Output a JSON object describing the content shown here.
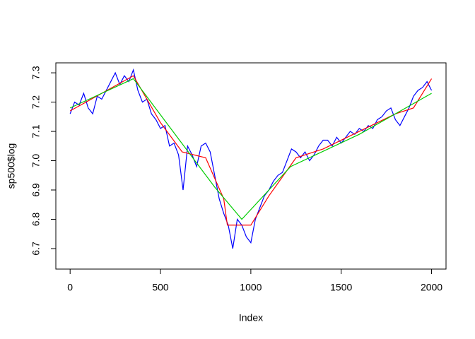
{
  "chart_data": {
    "type": "line",
    "x_label": "Index",
    "y_label": "sp500$log",
    "xlim": [
      -79,
      2080
    ],
    "ylim": [
      6.63,
      7.334
    ],
    "xticks": [
      0,
      500,
      1000,
      1500,
      2000
    ],
    "yticks": [
      6.7,
      6.8,
      6.9,
      {
        "value": 7,
        "label": "7.0"
      },
      7.1,
      7.2,
      7.3
    ],
    "series": [
      {
        "color": "#0000ff",
        "x": [
          0,
          25,
          50,
          75,
          100,
          125,
          150,
          175,
          200,
          225,
          250,
          275,
          300,
          325,
          350,
          375,
          400,
          425,
          450,
          475,
          500,
          525,
          550,
          575,
          600,
          625,
          650,
          675,
          700,
          725,
          750,
          775,
          800,
          825,
          850,
          875,
          900,
          925,
          950,
          975,
          1000,
          1025,
          1050,
          1075,
          1100,
          1125,
          1150,
          1175,
          1200,
          1225,
          1250,
          1275,
          1300,
          1325,
          1350,
          1375,
          1400,
          1425,
          1450,
          1475,
          1500,
          1525,
          1550,
          1575,
          1600,
          1625,
          1650,
          1675,
          1700,
          1725,
          1750,
          1775,
          1800,
          1825,
          1850,
          1875,
          1900,
          1925,
          1950,
          1975,
          2000
        ],
        "values": [
          7.16,
          7.2,
          7.19,
          7.23,
          7.18,
          7.16,
          7.22,
          7.21,
          7.24,
          7.27,
          7.3,
          7.26,
          7.29,
          7.27,
          7.31,
          7.24,
          7.2,
          7.21,
          7.16,
          7.14,
          7.11,
          7.12,
          7.05,
          7.06,
          7.02,
          6.9,
          7.05,
          7.02,
          6.98,
          7.05,
          7.06,
          7.03,
          6.95,
          6.87,
          6.82,
          6.78,
          6.7,
          6.8,
          6.78,
          6.74,
          6.72,
          6.8,
          6.84,
          6.88,
          6.9,
          6.93,
          6.95,
          6.96,
          7.0,
          7.04,
          7.03,
          7.01,
          7.03,
          7.0,
          7.02,
          7.05,
          7.07,
          7.07,
          7.05,
          7.08,
          7.06,
          7.08,
          7.1,
          7.09,
          7.11,
          7.1,
          7.12,
          7.11,
          7.14,
          7.15,
          7.17,
          7.18,
          7.14,
          7.12,
          7.15,
          7.18,
          7.22,
          7.24,
          7.25,
          7.27,
          7.24
        ]
      },
      {
        "color": "#ff0000",
        "x": [
          0,
          350,
          500,
          620,
          750,
          850,
          870,
          1000,
          1100,
          1250,
          1400,
          1800,
          1900,
          2000
        ],
        "values": [
          7.17,
          7.29,
          7.13,
          7.03,
          7.01,
          6.87,
          6.78,
          6.78,
          6.88,
          7.01,
          7.04,
          7.16,
          7.18,
          7.28
        ]
      },
      {
        "color": "#00cc00",
        "x": [
          0,
          350,
          800,
          950,
          1220,
          1600,
          2000
        ],
        "values": [
          7.18,
          7.28,
          6.91,
          6.8,
          6.98,
          7.09,
          7.23
        ]
      }
    ]
  }
}
